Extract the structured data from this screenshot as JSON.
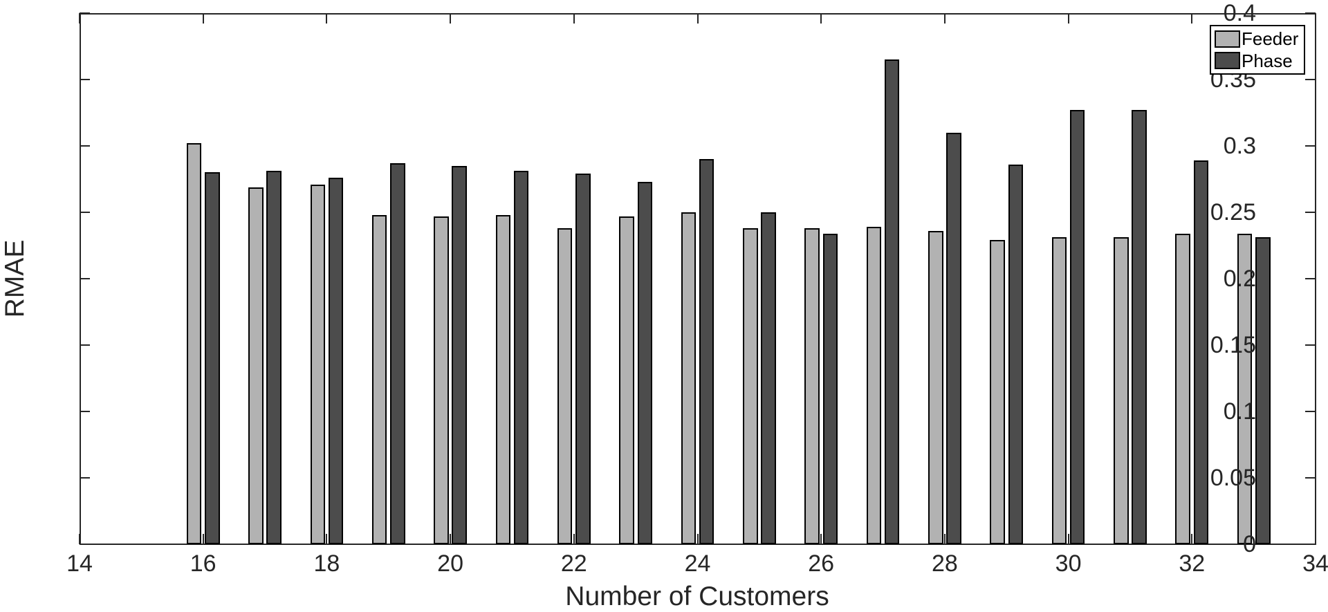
{
  "figure": {
    "background": "#ffffff",
    "text_color": "#262626",
    "axis_color": "#262626"
  },
  "chart_data": {
    "type": "bar",
    "title": "",
    "xlabel": "Number of Customers",
    "ylabel": "RMAE",
    "xlim": [
      14,
      34
    ],
    "ylim": [
      0,
      0.4
    ],
    "x_ticks": [
      14,
      16,
      18,
      20,
      22,
      24,
      26,
      28,
      30,
      32,
      34
    ],
    "x_tick_labels": [
      "14",
      "16",
      "18",
      "20",
      "22",
      "24",
      "26",
      "28",
      "30",
      "32",
      "34"
    ],
    "y_ticks": [
      0,
      0.05,
      0.1,
      0.15,
      0.2,
      0.25,
      0.3,
      0.35,
      0.4
    ],
    "y_tick_labels": [
      "0",
      "0.05",
      "0.1",
      "0.15",
      "0.2",
      "0.25",
      "0.3",
      "0.35",
      "0.4"
    ],
    "grid": false,
    "legend_position": "top-right",
    "categories": [
      16,
      17,
      18,
      19,
      20,
      21,
      22,
      23,
      24,
      25,
      26,
      27,
      28,
      29,
      30,
      31,
      32,
      33
    ],
    "series": [
      {
        "name": "Feeder",
        "fill": "#b2b2b2",
        "edge": "#000000",
        "values": [
          0.302,
          0.269,
          0.271,
          0.248,
          0.247,
          0.248,
          0.238,
          0.247,
          0.25,
          0.238,
          0.238,
          0.239,
          0.236,
          0.229,
          0.231,
          0.231,
          0.234,
          0.234
        ]
      },
      {
        "name": "Phase",
        "fill": "#4c4c4c",
        "edge": "#000000",
        "values": [
          0.28,
          0.281,
          0.276,
          0.287,
          0.285,
          0.281,
          0.279,
          0.273,
          0.29,
          0.25,
          0.234,
          0.365,
          0.31,
          0.286,
          0.327,
          0.327,
          0.289,
          0.231
        ]
      }
    ]
  }
}
